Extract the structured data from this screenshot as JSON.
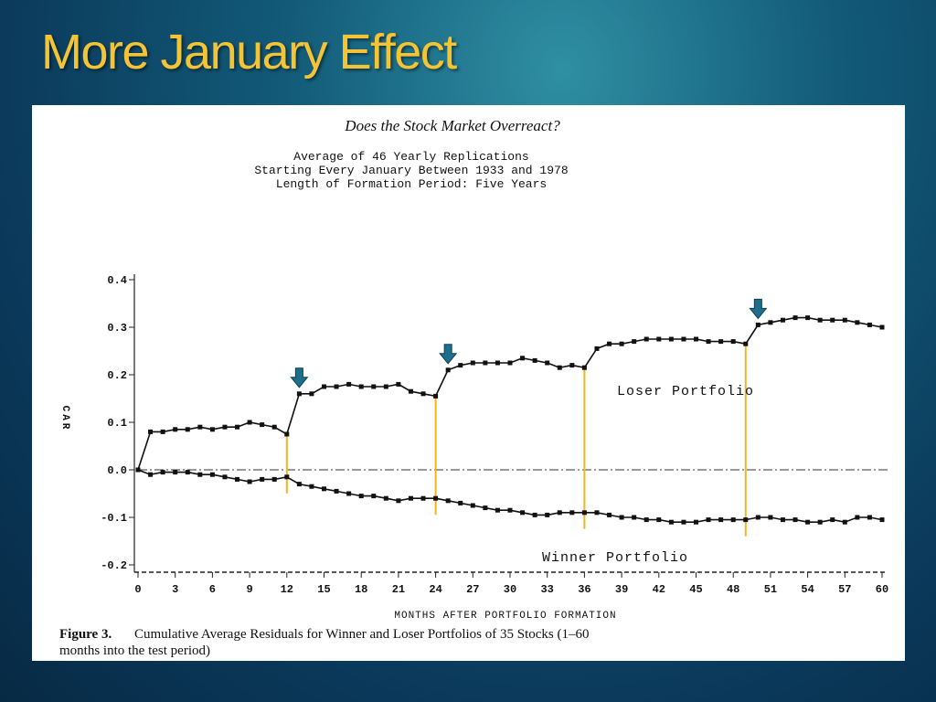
{
  "slide": {
    "title": "More January Effect"
  },
  "chart_data": {
    "type": "line",
    "title": "Does the Stock Market Overreact?",
    "subtitle": [
      "Average of 46 Yearly Replications",
      "Starting Every January Between 1933 and 1978",
      "Length of Formation Period:  Five Years"
    ],
    "y_label": "CAR",
    "x_label": "MONTHS AFTER PORTFOLIO FORMATION",
    "caption_label": "Figure 3.",
    "caption": "Cumulative Average Residuals for Winner and Loser Portfolios of 35 Stocks (1–60 months into the test period)",
    "x": [
      0,
      1,
      2,
      3,
      4,
      5,
      6,
      7,
      8,
      9,
      10,
      11,
      12,
      13,
      14,
      15,
      16,
      17,
      18,
      19,
      20,
      21,
      22,
      23,
      24,
      25,
      26,
      27,
      28,
      29,
      30,
      31,
      32,
      33,
      34,
      35,
      36,
      37,
      38,
      39,
      40,
      41,
      42,
      43,
      44,
      45,
      46,
      47,
      48,
      49,
      50,
      51,
      52,
      53,
      54,
      55,
      56,
      57,
      58,
      59,
      60
    ],
    "series": [
      {
        "name": "Loser Portfolio",
        "color": "#111111",
        "values": [
          0,
          0.08,
          0.08,
          0.085,
          0.085,
          0.09,
          0.085,
          0.09,
          0.09,
          0.1,
          0.095,
          0.09,
          0.075,
          0.16,
          0.16,
          0.175,
          0.175,
          0.18,
          0.175,
          0.175,
          0.175,
          0.18,
          0.165,
          0.16,
          0.155,
          0.21,
          0.22,
          0.225,
          0.225,
          0.225,
          0.225,
          0.235,
          0.23,
          0.225,
          0.215,
          0.22,
          0.215,
          0.255,
          0.265,
          0.265,
          0.27,
          0.275,
          0.275,
          0.275,
          0.275,
          0.275,
          0.27,
          0.27,
          0.27,
          0.265,
          0.305,
          0.31,
          0.315,
          0.32,
          0.32,
          0.315,
          0.315,
          0.315,
          0.31,
          0.305,
          0.3
        ]
      },
      {
        "name": "Winner Portfolio",
        "color": "#111111",
        "values": [
          0,
          -0.01,
          -0.005,
          -0.005,
          -0.005,
          -0.01,
          -0.01,
          -0.015,
          -0.02,
          -0.025,
          -0.02,
          -0.02,
          -0.015,
          -0.03,
          -0.035,
          -0.04,
          -0.045,
          -0.05,
          -0.055,
          -0.055,
          -0.06,
          -0.065,
          -0.06,
          -0.06,
          -0.06,
          -0.065,
          -0.07,
          -0.075,
          -0.08,
          -0.085,
          -0.085,
          -0.09,
          -0.095,
          -0.095,
          -0.09,
          -0.09,
          -0.09,
          -0.09,
          -0.095,
          -0.1,
          -0.1,
          -0.105,
          -0.105,
          -0.11,
          -0.11,
          -0.11,
          -0.105,
          -0.105,
          -0.105,
          -0.105,
          -0.1,
          -0.1,
          -0.105,
          -0.105,
          -0.11,
          -0.11,
          -0.105,
          -0.11,
          -0.1,
          -0.1,
          -0.105
        ]
      }
    ],
    "xlim": [
      0,
      60
    ],
    "xticks": [
      0,
      3,
      6,
      9,
      12,
      15,
      18,
      21,
      24,
      27,
      30,
      33,
      36,
      39,
      42,
      45,
      48,
      51,
      54,
      57,
      60
    ],
    "ylim": [
      -0.2,
      0.4
    ],
    "yticks": [
      -0.2,
      -0.1,
      {
        "value": 0,
        "label": "0.0"
      },
      0.1,
      0.2,
      0.3,
      0.4
    ],
    "reference_line": 0,
    "highlight_x": [
      12,
      24,
      36,
      49
    ],
    "highlight_color": "#f2b51c",
    "arrow_x": [
      13,
      25,
      50
    ],
    "arrow_color": "#1d6f8c"
  }
}
